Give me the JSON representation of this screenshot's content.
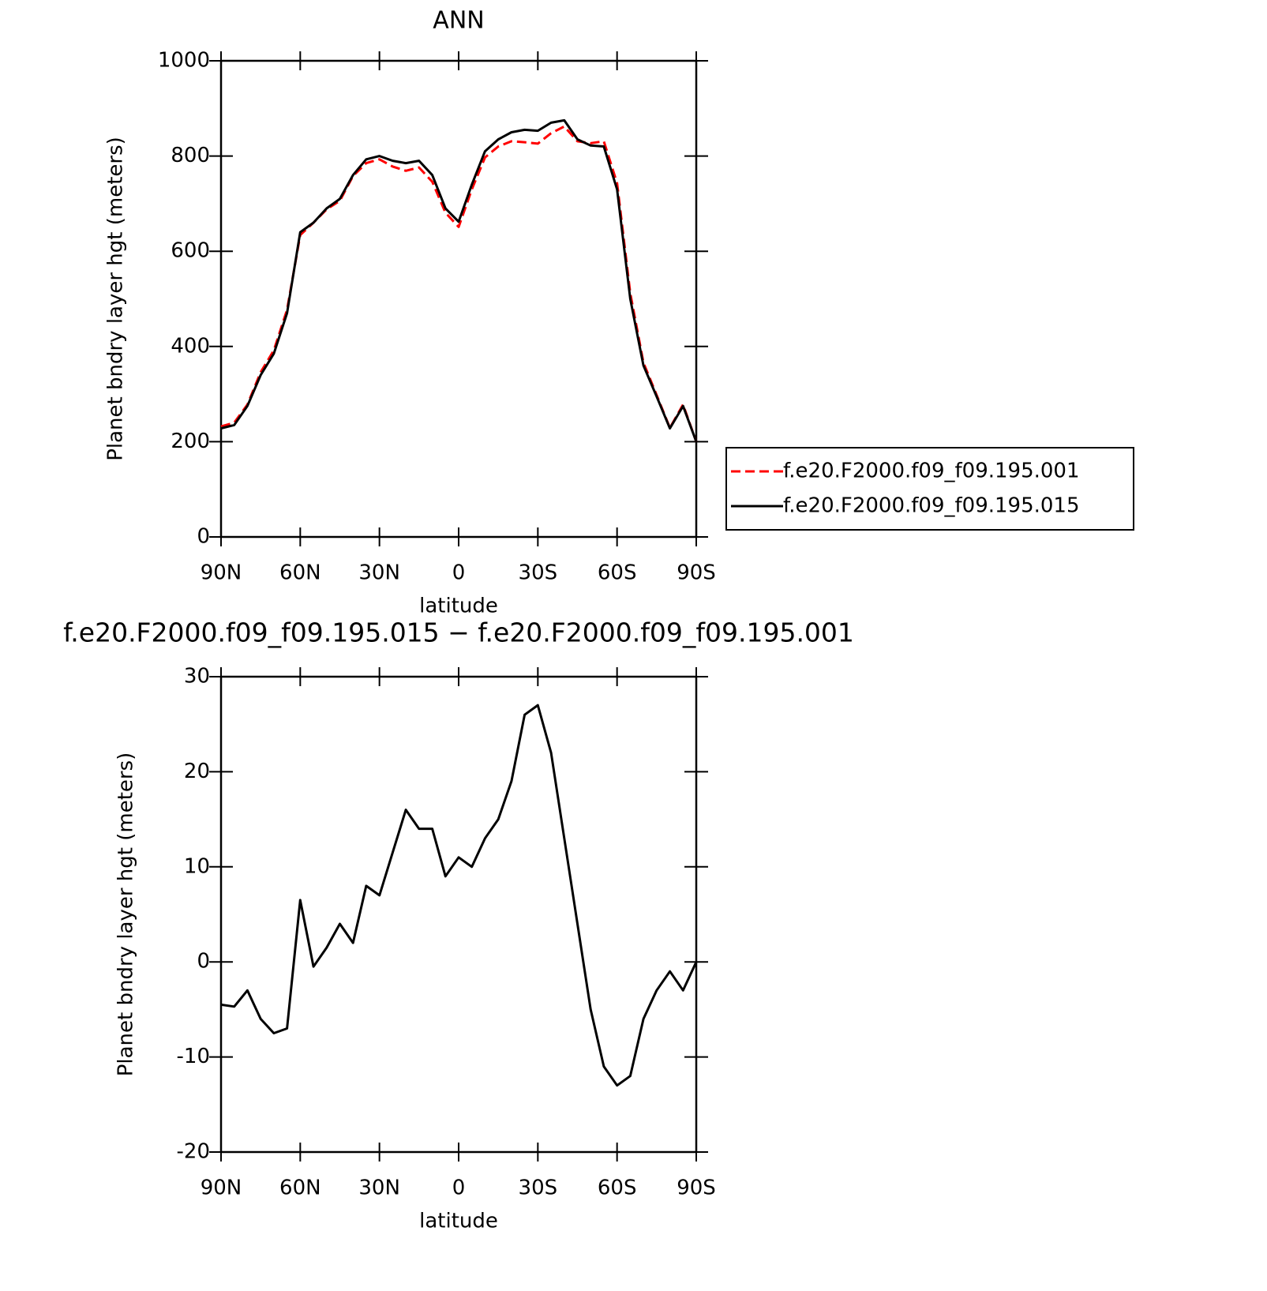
{
  "chart_data": [
    {
      "type": "line",
      "title": "ANN",
      "ylabel": "Planet bndry layer hgt (meters)",
      "xlabel": "latitude",
      "x": [
        90,
        85,
        80,
        75,
        70,
        65,
        60,
        55,
        50,
        45,
        40,
        35,
        30,
        25,
        20,
        15,
        10,
        5,
        0,
        -5,
        -10,
        -15,
        -20,
        -25,
        -30,
        -35,
        -40,
        -45,
        -50,
        -55,
        -60,
        -65,
        -70,
        -75,
        -80,
        -85,
        -90
      ],
      "xlim": [
        90,
        -90
      ],
      "xticks": [
        {
          "value": 90,
          "label": "90N"
        },
        {
          "value": 60,
          "label": "60N"
        },
        {
          "value": 30,
          "label": "30N"
        },
        0,
        {
          "value": -30,
          "label": "30S"
        },
        {
          "value": -60,
          "label": "60S"
        },
        {
          "value": -90,
          "label": "90S"
        }
      ],
      "ylim": [
        0,
        1000
      ],
      "yticks": [
        0,
        200,
        400,
        600,
        800,
        1000
      ],
      "series": [
        {
          "name": "f.e20.F2000.f09_f09.195.001",
          "color": "#ff0000",
          "line_style": "dashed",
          "values": [
            232,
            240,
            278,
            346,
            392,
            477,
            634,
            660,
            688,
            706,
            758,
            785,
            793,
            778,
            769,
            776,
            746,
            681,
            651,
            730,
            797,
            820,
            831,
            829,
            826,
            848,
            862,
            831,
            827,
            831,
            743,
            512,
            366,
            298,
            229,
            278,
            200
          ]
        },
        {
          "name": "f.e20.F2000.f09_f09.195.015",
          "color": "#000000",
          "line_style": "solid",
          "values": [
            228,
            235,
            275,
            340,
            385,
            470,
            640,
            660,
            690,
            710,
            760,
            793,
            800,
            790,
            785,
            790,
            760,
            690,
            662,
            740,
            810,
            835,
            850,
            855,
            853,
            870,
            875,
            835,
            822,
            820,
            730,
            500,
            360,
            295,
            228,
            275,
            200
          ]
        }
      ]
    },
    {
      "type": "line",
      "title": "f.e20.F2000.f09_f09.195.015 − f.e20.F2000.f09_f09.195.001",
      "ylabel": "Planet bndry layer hgt (meters)",
      "xlabel": "latitude",
      "x": [
        90,
        85,
        80,
        75,
        70,
        65,
        60,
        55,
        50,
        45,
        40,
        35,
        30,
        25,
        20,
        15,
        10,
        5,
        0,
        -5,
        -10,
        -15,
        -20,
        -25,
        -30,
        -35,
        -40,
        -45,
        -50,
        -55,
        -60,
        -65,
        -70,
        -75,
        -80,
        -85,
        -90
      ],
      "xlim": [
        90,
        -90
      ],
      "xticks": [
        {
          "value": 90,
          "label": "90N"
        },
        {
          "value": 60,
          "label": "60N"
        },
        {
          "value": 30,
          "label": "30N"
        },
        0,
        {
          "value": -30,
          "label": "30S"
        },
        {
          "value": -60,
          "label": "60S"
        },
        {
          "value": -90,
          "label": "90S"
        }
      ],
      "ylim": [
        -20,
        30
      ],
      "yticks": [
        -20,
        -10,
        0,
        10,
        20,
        30
      ],
      "color": "#000000",
      "values": [
        -4.5,
        -4.7,
        -3,
        -6,
        -7.5,
        -7,
        6.5,
        -0.5,
        1.5,
        4,
        2,
        8,
        7,
        11.5,
        16,
        14,
        14,
        9,
        11,
        10,
        13,
        15,
        19,
        26,
        27,
        22,
        13,
        4,
        -5,
        -11,
        -13,
        -12,
        -6,
        -3,
        -1,
        -3,
        0
      ]
    }
  ]
}
